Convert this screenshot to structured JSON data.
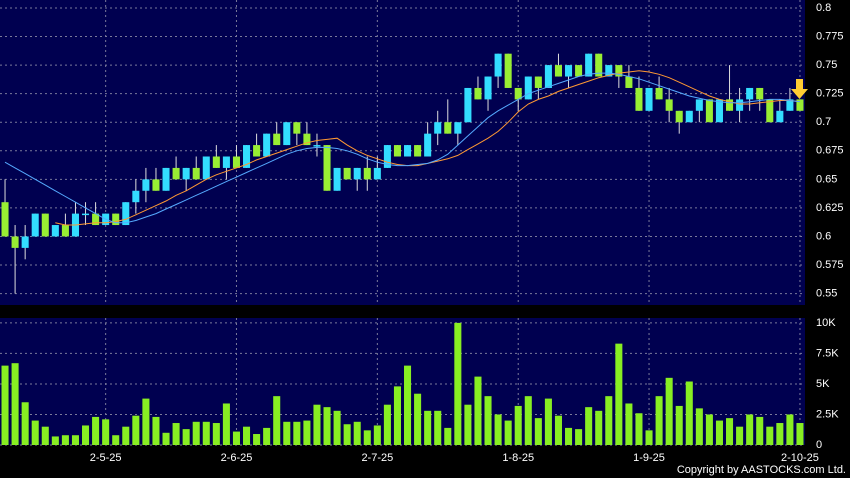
{
  "chart_data": [
    {
      "type": "candlestick",
      "xlim": [
        -0.5,
        79.5
      ],
      "ylim": [
        0.54,
        0.807
      ],
      "yticks": [
        0.55,
        0.575,
        0.6,
        0.625,
        0.65,
        0.675,
        0.7,
        0.725,
        0.75,
        0.775,
        0.8
      ],
      "up_color": "#33ddff",
      "down_color": "#99ee33",
      "open": [
        0.63,
        0.6,
        0.59,
        0.6,
        0.62,
        0.6,
        0.61,
        0.6,
        0.62,
        0.62,
        0.61,
        0.62,
        0.61,
        0.63,
        0.64,
        0.65,
        0.64,
        0.66,
        0.65,
        0.66,
        0.65,
        0.67,
        0.66,
        0.67,
        0.66,
        0.68,
        0.67,
        0.69,
        0.68,
        0.7,
        0.69,
        0.68,
        0.68,
        0.64,
        0.66,
        0.65,
        0.66,
        0.65,
        0.66,
        0.68,
        0.67,
        0.68,
        0.67,
        0.69,
        0.7,
        0.69,
        0.7,
        0.73,
        0.72,
        0.74,
        0.76,
        0.73,
        0.72,
        0.74,
        0.73,
        0.75,
        0.74,
        0.75,
        0.74,
        0.76,
        0.74,
        0.75,
        0.74,
        0.73,
        0.71,
        0.73,
        0.72,
        0.71,
        0.7,
        0.71,
        0.72,
        0.7,
        0.72,
        0.71,
        0.72,
        0.73,
        0.72,
        0.7,
        0.71,
        0.72
      ],
      "high": [
        0.65,
        0.61,
        0.61,
        0.62,
        0.62,
        0.61,
        0.62,
        0.63,
        0.63,
        0.63,
        0.62,
        0.62,
        0.63,
        0.65,
        0.66,
        0.66,
        0.66,
        0.67,
        0.66,
        0.67,
        0.67,
        0.68,
        0.67,
        0.68,
        0.68,
        0.69,
        0.69,
        0.7,
        0.7,
        0.7,
        0.7,
        0.69,
        0.68,
        0.66,
        0.66,
        0.66,
        0.67,
        0.67,
        0.68,
        0.68,
        0.68,
        0.68,
        0.7,
        0.71,
        0.72,
        0.7,
        0.73,
        0.74,
        0.74,
        0.76,
        0.76,
        0.73,
        0.74,
        0.74,
        0.75,
        0.76,
        0.75,
        0.75,
        0.76,
        0.76,
        0.75,
        0.75,
        0.75,
        0.74,
        0.73,
        0.74,
        0.73,
        0.71,
        0.71,
        0.72,
        0.72,
        0.72,
        0.75,
        0.73,
        0.73,
        0.73,
        0.72,
        0.72,
        0.73,
        0.72
      ],
      "low": [
        0.6,
        0.55,
        0.58,
        0.6,
        0.6,
        0.6,
        0.6,
        0.6,
        0.61,
        0.61,
        0.61,
        0.61,
        0.61,
        0.62,
        0.63,
        0.64,
        0.64,
        0.65,
        0.64,
        0.65,
        0.65,
        0.66,
        0.65,
        0.66,
        0.66,
        0.67,
        0.67,
        0.68,
        0.68,
        0.68,
        0.68,
        0.67,
        0.64,
        0.64,
        0.65,
        0.64,
        0.64,
        0.65,
        0.66,
        0.67,
        0.67,
        0.67,
        0.67,
        0.68,
        0.69,
        0.68,
        0.7,
        0.72,
        0.71,
        0.73,
        0.73,
        0.71,
        0.72,
        0.72,
        0.73,
        0.74,
        0.73,
        0.74,
        0.74,
        0.74,
        0.74,
        0.73,
        0.73,
        0.71,
        0.71,
        0.72,
        0.7,
        0.69,
        0.7,
        0.7,
        0.7,
        0.7,
        0.71,
        0.7,
        0.71,
        0.71,
        0.7,
        0.7,
        0.71,
        0.71
      ],
      "close": [
        0.6,
        0.59,
        0.6,
        0.62,
        0.6,
        0.61,
        0.6,
        0.62,
        0.62,
        0.61,
        0.62,
        0.61,
        0.63,
        0.64,
        0.65,
        0.64,
        0.66,
        0.65,
        0.66,
        0.65,
        0.67,
        0.66,
        0.67,
        0.66,
        0.68,
        0.67,
        0.69,
        0.68,
        0.7,
        0.69,
        0.68,
        0.68,
        0.64,
        0.66,
        0.65,
        0.66,
        0.65,
        0.66,
        0.68,
        0.67,
        0.68,
        0.67,
        0.69,
        0.7,
        0.69,
        0.7,
        0.73,
        0.72,
        0.74,
        0.76,
        0.73,
        0.72,
        0.74,
        0.73,
        0.75,
        0.74,
        0.75,
        0.74,
        0.76,
        0.74,
        0.75,
        0.74,
        0.73,
        0.71,
        0.73,
        0.72,
        0.71,
        0.7,
        0.71,
        0.72,
        0.7,
        0.72,
        0.71,
        0.72,
        0.73,
        0.72,
        0.7,
        0.71,
        0.72,
        0.71
      ],
      "lines": [
        {
          "color": "#ff9933",
          "values": [
            null,
            null,
            null,
            null,
            null,
            0.612,
            0.61,
            0.61,
            0.611,
            0.612,
            0.612,
            0.613,
            0.615,
            0.619,
            0.623,
            0.627,
            0.631,
            0.636,
            0.64,
            0.645,
            0.65,
            0.654,
            0.657,
            0.66,
            0.663,
            0.667,
            0.67,
            0.673,
            0.676,
            0.679,
            0.682,
            0.684,
            0.685,
            0.686,
            0.68,
            0.675,
            0.671,
            0.668,
            0.665,
            0.663,
            0.662,
            0.662,
            0.664,
            0.666,
            0.668,
            0.671,
            0.676,
            0.681,
            0.686,
            0.692,
            0.7,
            0.709,
            0.716,
            0.72,
            0.723,
            0.727,
            0.73,
            0.733,
            0.736,
            0.739,
            0.741,
            0.743,
            0.744,
            0.745,
            0.744,
            0.742,
            0.739,
            0.735,
            0.731,
            0.727,
            0.723,
            0.72,
            0.718,
            0.716,
            0.716,
            0.717,
            0.718,
            0.719,
            0.719,
            0.718
          ]
        },
        {
          "color": "#55aaff",
          "values": [
            0.665,
            0.66,
            0.655,
            0.65,
            0.645,
            0.64,
            0.635,
            0.63,
            0.625,
            0.62,
            0.615,
            0.612,
            0.612,
            0.614,
            0.617,
            0.62,
            0.624,
            0.628,
            0.632,
            0.636,
            0.64,
            0.644,
            0.648,
            0.652,
            0.656,
            0.66,
            0.664,
            0.668,
            0.672,
            0.675,
            0.677,
            0.678,
            0.678,
            0.677,
            0.675,
            0.672,
            0.668,
            0.665,
            0.663,
            0.662,
            0.662,
            0.663,
            0.664,
            0.667,
            0.672,
            0.68,
            0.688,
            0.696,
            0.704,
            0.71,
            0.715,
            0.72,
            0.725,
            0.728,
            0.731,
            0.734,
            0.737,
            0.74,
            0.742,
            0.743,
            0.743,
            0.742,
            0.74,
            0.738,
            0.735,
            0.732,
            0.729,
            0.726,
            0.723,
            0.721,
            0.719,
            0.718,
            0.717,
            0.717,
            0.718,
            0.719,
            0.72,
            0.72,
            0.719,
            0.718
          ]
        }
      ]
    },
    {
      "type": "bar",
      "xlim": [
        -0.5,
        79.5
      ],
      "ylim": [
        0,
        10400
      ],
      "yticks": [
        0,
        {
          "value": 2500,
          "label": "2.5K"
        },
        {
          "value": 5000,
          "label": "5K"
        },
        {
          "value": 7500,
          "label": "7.5K"
        },
        {
          "value": 10000,
          "label": "10K"
        }
      ],
      "xticks": [
        {
          "value": 10,
          "label": "2-5-25"
        },
        {
          "value": 23,
          "label": "2-6-25"
        },
        {
          "value": 37,
          "label": "2-7-25"
        },
        {
          "value": 51,
          "label": "1-8-25"
        },
        {
          "value": 64,
          "label": "1-9-25"
        },
        {
          "value": 79,
          "label": "2-10-25"
        }
      ],
      "color": "#88ee22",
      "values": [
        6500,
        6700,
        3500,
        2000,
        1500,
        700,
        800,
        800,
        1600,
        2300,
        2100,
        800,
        1500,
        2400,
        3800,
        2300,
        1000,
        1800,
        1300,
        1900,
        1900,
        1800,
        3400,
        1100,
        1500,
        900,
        1400,
        4000,
        1900,
        1900,
        2000,
        3300,
        3100,
        2800,
        1700,
        1900,
        1200,
        1600,
        3300,
        4800,
        6500,
        4200,
        2800,
        2800,
        1400,
        10000,
        3300,
        5600,
        4000,
        2500,
        2000,
        3200,
        4000,
        2200,
        3800,
        2400,
        1400,
        1300,
        3100,
        2800,
        4000,
        8300,
        3400,
        2600,
        1200,
        4000,
        5500,
        3200,
        5200,
        3000,
        2500,
        2000,
        2200,
        1500,
        2500,
        2300,
        1500,
        1800,
        2500,
        1800
      ]
    }
  ],
  "footer": "Copyright by AASTOCKS.com Ltd."
}
